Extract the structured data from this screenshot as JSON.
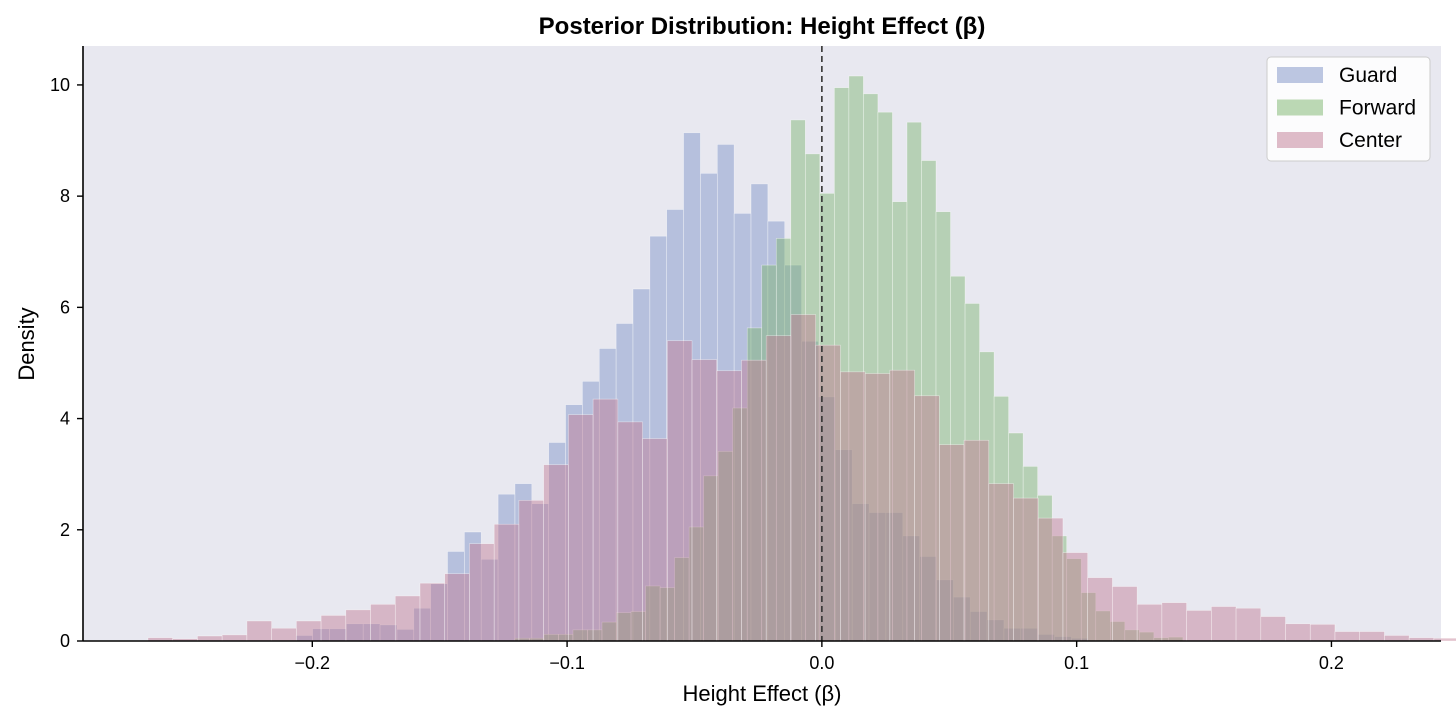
{
  "chart_data": {
    "type": "histogram",
    "title": "Posterior Distribution: Height Effect (β)",
    "xlabel": "Height Effect (β)",
    "ylabel": "Density",
    "xlim": [
      -0.29,
      0.243
    ],
    "ylim": [
      0,
      10.7
    ],
    "xticks": [
      -0.2,
      -0.1,
      0.0,
      0.1,
      0.2
    ],
    "xtick_labels": [
      "−0.2",
      "−0.1",
      "0.0",
      "0.1",
      "0.2"
    ],
    "yticks": [
      0,
      2,
      4,
      6,
      8,
      10
    ],
    "ytick_labels": [
      "0",
      "2",
      "4",
      "6",
      "8",
      "10"
    ],
    "reference_line": {
      "x": 0.0,
      "style": "dashed",
      "color": "#333333"
    },
    "background": "#e8e8f0",
    "legend": {
      "position": "top-right",
      "entries": [
        "Guard",
        "Forward",
        "Center"
      ]
    },
    "grid": false,
    "series": [
      {
        "name": "Guard",
        "color": "#7b90c6",
        "opacity": 0.45,
        "bin_width": 0.006618,
        "bins_start": -0.2065,
        "values": [
          0.1,
          0.22,
          0.22,
          0.31,
          0.31,
          0.29,
          0.21,
          0.59,
          1.03,
          1.61,
          1.96,
          1.47,
          2.64,
          2.83,
          2.47,
          3.57,
          4.25,
          4.67,
          5.26,
          5.71,
          6.33,
          7.28,
          7.76,
          9.14,
          8.41,
          8.93,
          7.69,
          8.22,
          7.55,
          6.76,
          5.39,
          4.39,
          3.44,
          2.47,
          2.31,
          2.31,
          1.89,
          1.52,
          1.1,
          0.79,
          0.53,
          0.38,
          0.23,
          0.23,
          0.12,
          0.08,
          0.05
        ]
      },
      {
        "name": "Forward",
        "color": "#7ab36c",
        "opacity": 0.45,
        "bin_width": 0.0057,
        "bins_start": -0.1205,
        "values": [
          0.05,
          0.05,
          0.12,
          0.12,
          0.2,
          0.2,
          0.34,
          0.51,
          0.53,
          0.99,
          0.96,
          1.5,
          2.05,
          2.97,
          3.41,
          4.19,
          5.63,
          6.76,
          7.24,
          9.37,
          8.76,
          8.05,
          9.95,
          10.16,
          9.84,
          9.51,
          7.9,
          9.33,
          8.64,
          7.72,
          6.56,
          6.07,
          5.2,
          4.4,
          3.74,
          3.14,
          2.62,
          1.89,
          1.48,
          0.87,
          0.54,
          0.35,
          0.2,
          0.16,
          0.06,
          0.07
        ]
      },
      {
        "name": "Center",
        "color": "#c07a93",
        "opacity": 0.45,
        "bin_width": 0.009706,
        "bins_start": -0.2645,
        "values": [
          0.06,
          0.04,
          0.09,
          0.11,
          0.36,
          0.23,
          0.36,
          0.46,
          0.56,
          0.66,
          0.81,
          1.04,
          1.21,
          1.75,
          2.1,
          2.53,
          3.17,
          4.07,
          4.35,
          3.94,
          3.64,
          5.4,
          5.06,
          4.86,
          5.05,
          5.49,
          5.87,
          5.32,
          4.84,
          4.81,
          4.87,
          4.41,
          3.53,
          3.61,
          2.83,
          2.57,
          2.21,
          1.59,
          1.14,
          0.98,
          0.66,
          0.69,
          0.55,
          0.62,
          0.59,
          0.44,
          0.31,
          0.3,
          0.17,
          0.17,
          0.1,
          0.06,
          0.05
        ]
      }
    ]
  }
}
